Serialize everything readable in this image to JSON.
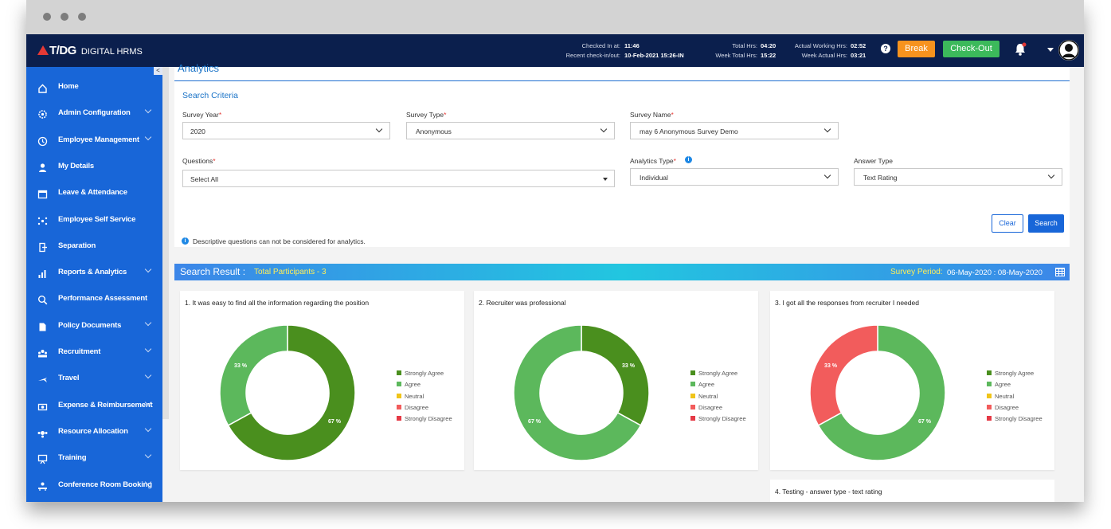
{
  "brand": {
    "logo_text": "T/DG",
    "app_name": "DIGITAL HRMS"
  },
  "topbar": {
    "checked_in_label": "Checked In at:",
    "checked_in_value": "11:46",
    "recent_label": "Recent check-in/out:",
    "recent_value": "10-Feb-2021 15:26-IN",
    "total_hrs_label": "Total Hrs:",
    "total_hrs_value": "04:20",
    "week_total_label": "Week Total Hrs:",
    "week_total_value": "15:22",
    "actual_working_label": "Actual Working Hrs:",
    "actual_working_value": "02:52",
    "week_actual_label": "Week Actual Hrs:",
    "week_actual_value": "03:21",
    "help_glyph": "?",
    "break_label": "Break",
    "checkout_label": "Check-Out"
  },
  "sidebar": {
    "collapse_glyph": "<",
    "items": [
      {
        "label": "Home",
        "icon": "home-icon",
        "has_submenu": false
      },
      {
        "label": "Admin Configuration",
        "icon": "gear-icon",
        "has_submenu": true
      },
      {
        "label": "Employee Management",
        "icon": "clock-icon",
        "has_submenu": true
      },
      {
        "label": "My Details",
        "icon": "user-icon",
        "has_submenu": false
      },
      {
        "label": "Leave & Attendance",
        "icon": "calendar-icon",
        "has_submenu": false
      },
      {
        "label": "Employee Self Service",
        "icon": "network-icon",
        "has_submenu": false
      },
      {
        "label": "Separation",
        "icon": "exit-icon",
        "has_submenu": false
      },
      {
        "label": "Reports & Analytics",
        "icon": "chart-icon",
        "has_submenu": true
      },
      {
        "label": "Performance Assessment",
        "icon": "magnifier-icon",
        "has_submenu": false
      },
      {
        "label": "Policy Documents",
        "icon": "document-icon",
        "has_submenu": true
      },
      {
        "label": "Recruitment",
        "icon": "team-icon",
        "has_submenu": true
      },
      {
        "label": "Travel",
        "icon": "plane-icon",
        "has_submenu": true
      },
      {
        "label": "Expense & Reimbursement",
        "icon": "money-icon",
        "has_submenu": true
      },
      {
        "label": "Resource Allocation",
        "icon": "resource-icon",
        "has_submenu": true
      },
      {
        "label": "Training",
        "icon": "training-icon",
        "has_submenu": true
      },
      {
        "label": "Conference Room Booking",
        "icon": "meeting-icon",
        "has_submenu": true
      }
    ]
  },
  "page": {
    "title": "Analytics",
    "search_criteria_title": "Search Criteria"
  },
  "form": {
    "survey_year": {
      "label": "Survey Year",
      "value": "2020"
    },
    "survey_type": {
      "label": "Survey Type",
      "value": "Anonymous"
    },
    "survey_name": {
      "label": "Survey Name",
      "value": "may 6 Anonymous Survey Demo"
    },
    "questions": {
      "label": "Questions",
      "value": "Select All"
    },
    "analytics_type": {
      "label": "Analytics Type",
      "value": "Individual"
    },
    "answer_type": {
      "label": "Answer Type",
      "value": "Text Rating"
    },
    "required_mark": "*",
    "info_glyph": "i",
    "clear_label": "Clear",
    "search_label": "Search",
    "note": "Descriptive questions can not be considered for analytics."
  },
  "results": {
    "title": "Search Result :",
    "participants": "Total Participants - 3",
    "period_label": "Survey Period:",
    "period_value": "06-May-2020 : 08-May-2020"
  },
  "legend": [
    {
      "label": "Strongly Agree",
      "color": "#4a8f1e"
    },
    {
      "label": "Agree",
      "color": "#5cb85c"
    },
    {
      "label": "Neutral",
      "color": "#f0c419"
    },
    {
      "label": "Disagree",
      "color": "#f25c5c"
    },
    {
      "label": "Strongly Disagree",
      "color": "#e53946"
    }
  ],
  "chart_data": [
    {
      "type": "pie",
      "title": "1. It was easy to find all the information regarding the position",
      "slices": [
        {
          "label": "Strongly Agree",
          "value": 67,
          "color": "#4a8f1e"
        },
        {
          "label": "Agree",
          "value": 33,
          "color": "#5cb85c"
        }
      ]
    },
    {
      "type": "pie",
      "title": "2. Recruiter was professional",
      "slices": [
        {
          "label": "Strongly Agree",
          "value": 33,
          "color": "#4a8f1e"
        },
        {
          "label": "Agree",
          "value": 67,
          "color": "#5cb85c"
        }
      ]
    },
    {
      "type": "pie",
      "title": "3. I got all the responses from recruiter I needed",
      "slices": [
        {
          "label": "Agree",
          "value": 67,
          "color": "#5cb85c"
        },
        {
          "label": "Disagree",
          "value": 33,
          "color": "#f25c5c"
        }
      ]
    }
  ],
  "question4": "4. Testing - answer type - text rating"
}
